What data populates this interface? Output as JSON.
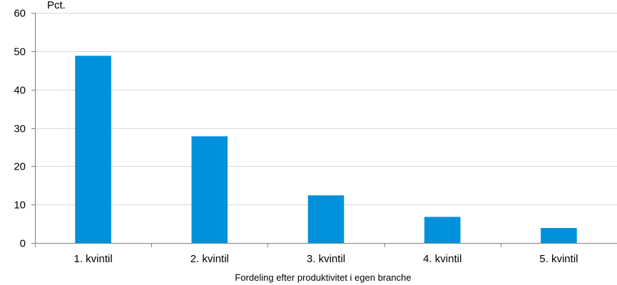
{
  "chart_data": {
    "type": "bar",
    "title": "",
    "ylabel": "Pct.",
    "xlabel": "Fordeling efter produktivitet i egen branche",
    "categories": [
      "1. kvintil",
      "2. kvintil",
      "3. kvintil",
      "4. kvintil",
      "5. kvintil"
    ],
    "values": [
      48.8,
      27.8,
      12.4,
      6.8,
      3.9
    ],
    "ylim": [
      0,
      60
    ],
    "yticks": [
      0,
      10,
      20,
      30,
      40,
      50,
      60
    ],
    "grid": true,
    "bar_color": "#0091DA",
    "grid_color": "#D9D9D9",
    "axis_color": "#808080"
  }
}
